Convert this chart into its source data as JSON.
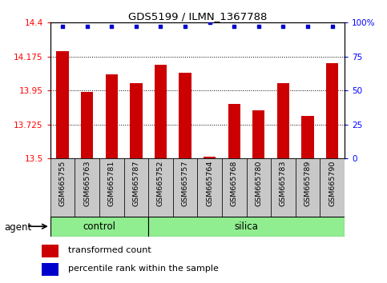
{
  "title": "GDS5199 / ILMN_1367788",
  "samples": [
    "GSM665755",
    "GSM665763",
    "GSM665781",
    "GSM665787",
    "GSM665752",
    "GSM665757",
    "GSM665764",
    "GSM665768",
    "GSM665780",
    "GSM665783",
    "GSM665789",
    "GSM665790"
  ],
  "groups": [
    "control",
    "control",
    "control",
    "control",
    "silica",
    "silica",
    "silica",
    "silica",
    "silica",
    "silica",
    "silica",
    "silica"
  ],
  "red_values": [
    14.21,
    13.94,
    14.06,
    14.0,
    14.12,
    14.07,
    13.51,
    13.86,
    13.82,
    14.0,
    13.78,
    14.13
  ],
  "blue_percentiles": [
    97,
    97,
    97,
    97,
    97,
    97,
    100,
    97,
    97,
    97,
    97,
    97
  ],
  "y_min": 13.5,
  "y_max": 14.4,
  "ylim_right": [
    0,
    100
  ],
  "yticks_left": [
    13.5,
    13.725,
    13.95,
    14.175,
    14.4
  ],
  "yticks_right": [
    0,
    25,
    50,
    75,
    100
  ],
  "ytick_labels_left": [
    "13.5",
    "13.725",
    "13.95",
    "14.175",
    "14.4"
  ],
  "ytick_labels_right": [
    "0",
    "25",
    "50",
    "75",
    "100%"
  ],
  "bar_color": "#cc0000",
  "dot_color": "#0000cc",
  "group_color": "#90ee90",
  "bg_color": "#c8c8c8",
  "agent_label": "agent",
  "group_labels": [
    "control",
    "silica"
  ],
  "n_control": 4,
  "legend_bar_label": "transformed count",
  "legend_dot_label": "percentile rank within the sample",
  "bar_width": 0.5
}
